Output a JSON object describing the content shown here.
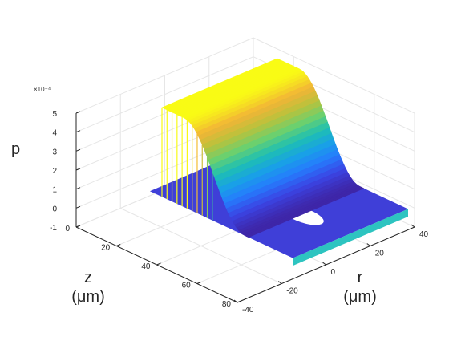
{
  "chart_data": {
    "type": "surface3d",
    "title": "",
    "zlabel": "p",
    "xlabel_line1": "z",
    "xlabel_line2": "(μm)",
    "ylabel_line1": "r",
    "ylabel_line2": "(μm)",
    "z_exponent_label": "×10⁻⁴",
    "x_axis": {
      "name": "z",
      "range": [
        0,
        80
      ],
      "ticks": [
        0,
        20,
        40,
        60,
        80
      ]
    },
    "y_axis": {
      "name": "r",
      "range": [
        -40,
        40
      ],
      "ticks": [
        -40,
        -20,
        0,
        20,
        40
      ],
      "tick_labels": [
        "-40",
        "-20",
        "0",
        "20",
        "40"
      ]
    },
    "p_axis": {
      "range": [
        -1,
        5
      ],
      "ticks": [
        -1,
        0,
        1,
        2,
        3,
        4,
        5
      ],
      "tick_labels": [
        "-1",
        "0",
        "1",
        "2",
        "3",
        "4",
        "5"
      ],
      "scale": 0.0001
    },
    "colormap": "parula",
    "grid": true,
    "surface": {
      "description_hidden": true,
      "plateau_value": 4.7,
      "plateau_until_z": 25,
      "falloff_end_z": 55,
      "baseline_value": 0,
      "hole_center_z": 58,
      "hole_center_r": 10,
      "slab_thickness": 0.25
    },
    "colors": {
      "parula_low": "#3e26a8",
      "parula_high": "#f9fb15",
      "floor": "#3f3fd8",
      "slab_edge": "#2dc4c0",
      "grid": "#e6e6e6",
      "axis": "#262626"
    }
  }
}
